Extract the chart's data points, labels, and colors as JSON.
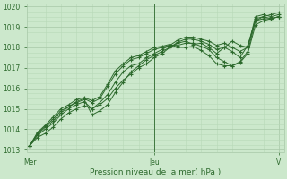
{
  "bg_color": "#cce8cc",
  "plot_bg_color": "#cce8cc",
  "line_color": "#2d6a2d",
  "grid_color_major": "#a8c8a8",
  "grid_color_minor": "#b8d8b8",
  "tick_color": "#2d6a2d",
  "text_color": "#2d6a2d",
  "xlabel": "Pression niveau de la mer( hPa )",
  "ylim": [
    1013,
    1020
  ],
  "yticks": [
    1013,
    1014,
    1015,
    1016,
    1017,
    1018,
    1019,
    1020
  ],
  "xtick_labels": [
    "Mer",
    "Jeu",
    "V"
  ],
  "vline_x": 0.5,
  "series": [
    [
      1013.2,
      1013.6,
      1013.8,
      1014.1,
      1014.5,
      1014.8,
      1015.0,
      1015.15,
      1015.0,
      1015.2,
      1015.5,
      1016.0,
      1016.4,
      1016.7,
      1017.0,
      1017.2,
      1017.5,
      1017.7,
      1018.0,
      1018.2,
      1018.3,
      1018.15,
      1018.2,
      1018.0,
      1017.7,
      1018.0,
      1018.3,
      1018.1,
      1018.0,
      1019.4,
      1019.5,
      1019.4,
      1019.5
    ],
    [
      1013.2,
      1013.7,
      1014.0,
      1014.3,
      1014.7,
      1015.0,
      1015.2,
      1015.35,
      1015.0,
      1015.3,
      1015.7,
      1016.3,
      1016.8,
      1017.1,
      1017.2,
      1017.5,
      1017.7,
      1017.9,
      1018.1,
      1018.35,
      1018.5,
      1018.5,
      1018.4,
      1018.3,
      1018.1,
      1018.2,
      1018.0,
      1017.8,
      1018.0,
      1019.5,
      1019.6,
      1019.5,
      1019.6
    ],
    [
      1013.2,
      1013.75,
      1014.1,
      1014.4,
      1014.8,
      1015.1,
      1015.3,
      1015.45,
      1014.7,
      1014.9,
      1015.2,
      1015.8,
      1016.3,
      1016.8,
      1017.1,
      1017.4,
      1017.6,
      1017.8,
      1018.0,
      1018.25,
      1018.4,
      1018.4,
      1018.3,
      1018.15,
      1017.9,
      1018.0,
      1017.8,
      1017.5,
      1018.1,
      1019.3,
      1019.4,
      1019.4,
      1019.5
    ],
    [
      1013.2,
      1013.8,
      1014.15,
      1014.5,
      1014.9,
      1015.1,
      1015.35,
      1015.5,
      1015.3,
      1015.5,
      1016.1,
      1016.7,
      1017.1,
      1017.4,
      1017.5,
      1017.7,
      1017.9,
      1018.0,
      1018.1,
      1018.1,
      1018.2,
      1018.2,
      1018.05,
      1017.9,
      1017.5,
      1017.3,
      1017.1,
      1017.3,
      1017.8,
      1019.3,
      1019.5,
      1019.6,
      1019.7
    ],
    [
      1013.2,
      1013.85,
      1014.2,
      1014.6,
      1015.0,
      1015.2,
      1015.45,
      1015.55,
      1015.4,
      1015.6,
      1016.2,
      1016.85,
      1017.2,
      1017.5,
      1017.6,
      1017.8,
      1018.0,
      1018.05,
      1018.15,
      1018.0,
      1018.0,
      1018.05,
      1017.85,
      1017.6,
      1017.2,
      1017.1,
      1017.1,
      1017.25,
      1017.7,
      1019.1,
      1019.3,
      1019.4,
      1019.5
    ]
  ]
}
